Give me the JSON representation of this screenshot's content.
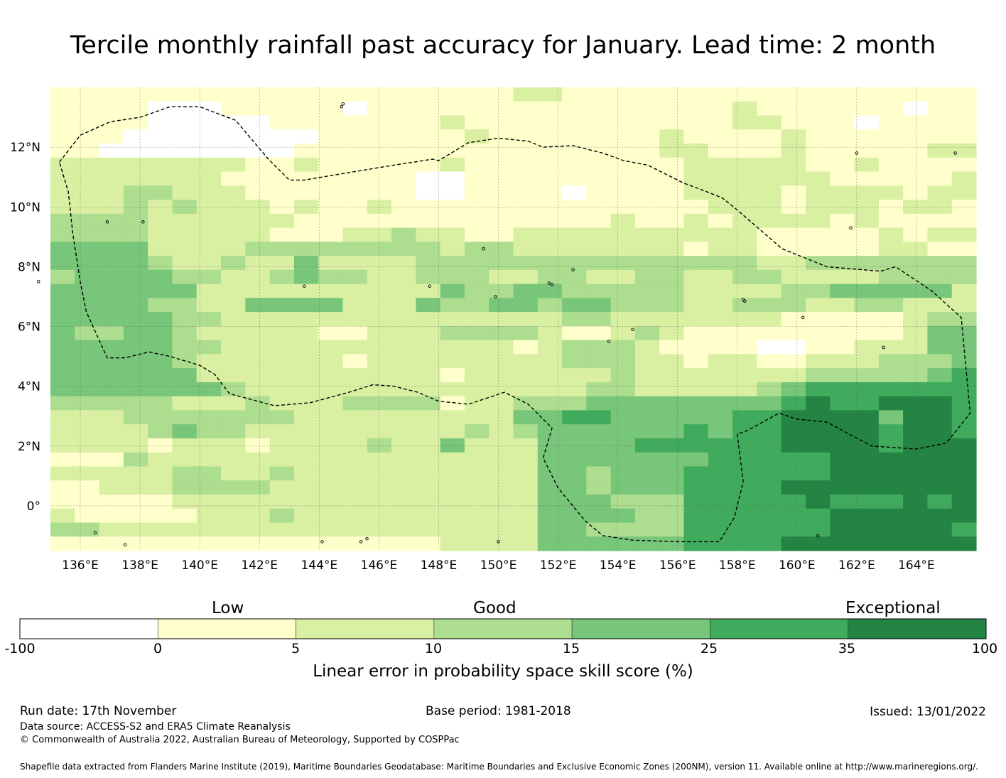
{
  "title": "Tercile monthly rainfall past accuracy for January. Lead time: 2 month",
  "map": {
    "lon_range": [
      135,
      166
    ],
    "lat_range": [
      -1.5,
      14
    ],
    "lon_ticks": [
      {
        "value": 136,
        "label": "136°E"
      },
      {
        "value": 138,
        "label": "138°E"
      },
      {
        "value": 140,
        "label": "140°E"
      },
      {
        "value": 142,
        "label": "142°E"
      },
      {
        "value": 144,
        "label": "144°E"
      },
      {
        "value": 146,
        "label": "146°E"
      },
      {
        "value": 148,
        "label": "148°E"
      },
      {
        "value": 150,
        "label": "150°E"
      },
      {
        "value": 152,
        "label": "152°E"
      },
      {
        "value": 154,
        "label": "154°E"
      },
      {
        "value": 156,
        "label": "156°E"
      },
      {
        "value": 158,
        "label": "158°E"
      },
      {
        "value": 160,
        "label": "160°E"
      },
      {
        "value": 162,
        "label": "162°E"
      },
      {
        "value": 164,
        "label": "164°E"
      }
    ],
    "lat_ticks": [
      {
        "value": 12,
        "label": "12°N"
      },
      {
        "value": 10,
        "label": "10°N"
      },
      {
        "value": 8,
        "label": "8°N"
      },
      {
        "value": 6,
        "label": "6°N"
      },
      {
        "value": 4,
        "label": "4°N"
      },
      {
        "value": 2,
        "label": "2°N"
      },
      {
        "value": 0,
        "label": "0°"
      }
    ]
  },
  "legend": {
    "categories": {
      "low": "Low",
      "good": "Good",
      "exceptional": "Exceptional"
    },
    "colors": [
      "#ffffff",
      "#ffffcc",
      "#d9f0a3",
      "#addd8e",
      "#78c679",
      "#41ab5d",
      "#238443"
    ],
    "boundaries": [
      "-100",
      "0",
      "5",
      "10",
      "15",
      "25",
      "35",
      "100"
    ],
    "title": "Linear error in probability space skill score (%)"
  },
  "footer": {
    "run_date": "Run date: 17th November",
    "base_period": "Base period: 1981-2018",
    "issued": "Issued: 13/01/2022",
    "data_source": "Data source: ACCESS-S2 and ERA5 Climate Reanalysis",
    "copyright": "© Commonwealth of Australia 2022, Australian Bureau of Meteorology, Supported by COSPPac",
    "shapefile": "Shapefile data extracted from Flanders Marine Institute (2019), Maritime Boundaries Geodatabase: Maritime Boundaries and Exclusive Economic Zones (200NM), version 11. Available online at http://www.marineregions.org/."
  },
  "chart_data": {
    "type": "heatmap",
    "title": "Tercile monthly rainfall past accuracy for January. Lead time: 2 month",
    "colorbar_label": "Linear error in probability space skill score (%)",
    "bins": [
      -100,
      0,
      5,
      10,
      15,
      25,
      35,
      100
    ],
    "grid_info": "rows from north (~14N) to south (~-1.5N), columns from 135E eastward; values are color class index 0-6",
    "rows": [
      "11111111111111111112211111111111111111",
      "11110001111101111111111111112111111011",
      "11110000011111112111111111112211101111",
      "11100000000111111211111112111121111111",
      "11000000001111111111111112211121111122",
      "22222222112111112111111111222221121111",
      "22222221111111100111111111222222111112",
      "22233222111111100111101111222212222122",
      "22232322212112111111111111122212221221",
      "33332222221111111111111211212222121111",
      "33332222211122322112222222222111112122",
      "44442222333333332332222222122111112211",
      "44443223224222233333333333333223333333",
      "34444332234332233322332233223322223333",
      "44444422222222224334433333222233444442",
      "44443322444422243344344333223332233222",
      "44444332222222222222233222222211111233",
      "43344322222112223333211232111111111244",
      "44444332222222222221233321111001122244",
      "44444322222212222222233322122112223334",
      "44444422222222221222222322222223333345",
      "44444443222222222222223322222345555555",
      "33333222322233331223334444444456556665",
      "22233333332222222224455444445566664665",
      "22223433222222222323444444545566665665",
      "22221222122223224222444455555566665666",
      "11132222222222222222444444455555666666",
      "22222332232222222222443444555555666666",
      "11222333322222222222443444555566666666",
      "11111222222222222222444333555556555656",
      "21111122232222222222444433555555666666",
      "33222222222222222222443333555555666665",
      "11111111111111112222444444555566666666"
    ]
  }
}
